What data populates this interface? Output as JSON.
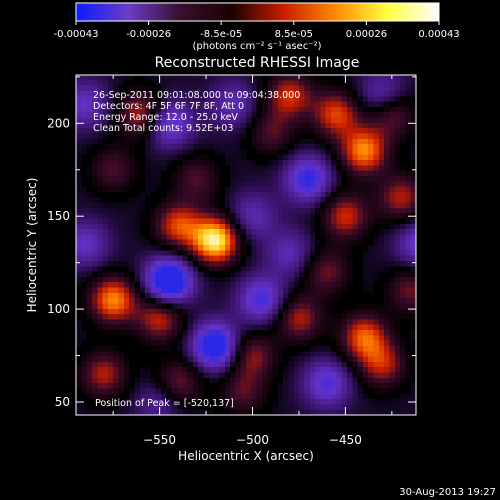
{
  "colorbar": {
    "ticks": [
      "-0.00043",
      "-0.00026",
      "-8.5e-05",
      "8.5e-05",
      "0.00026",
      "0.00043"
    ],
    "units": "(photons cm⁻² s⁻¹ asec⁻²)",
    "colors": [
      "#0a1cff",
      "#6a3cc8",
      "#3a1030",
      "#1a0000",
      "#c81e00",
      "#ff8a00",
      "#ffff40",
      "#ffffff"
    ]
  },
  "chart_data": {
    "type": "heatmap",
    "title": "Reconstructed RHESSI Image",
    "xlabel": "Heliocentric X (arcsec)",
    "ylabel": "Heliocentric Y (arcsec)",
    "xlim": [
      -595,
      -412
    ],
    "ylim": [
      43,
      226
    ],
    "x_ticks": [
      -550,
      -500,
      -450
    ],
    "y_ticks": [
      50,
      100,
      150,
      200
    ],
    "zlim": [
      -0.00043,
      0.00043
    ],
    "annotations": [
      "26-Sep-2011 09:01:08.000 to 09:04:38.000",
      "Detectors: 4F 5F 6F 7F 8F, Att 0",
      "Energy Range: 12.0 - 25.0 keV",
      "Clean    Total counts: 9.52E+03"
    ],
    "peak_label": "Position of Peak = [-520,137]",
    "peak": {
      "x": -520,
      "y": 137
    },
    "sources": [
      {
        "x": -520,
        "y": 137,
        "amp": 1.0
      },
      {
        "x": -540,
        "y": 145,
        "amp": 0.6
      },
      {
        "x": -560,
        "y": 205,
        "amp": 0.55
      },
      {
        "x": -575,
        "y": 175,
        "amp": 0.35
      },
      {
        "x": -480,
        "y": 215,
        "amp": 0.55
      },
      {
        "x": -490,
        "y": 195,
        "amp": 0.35
      },
      {
        "x": -440,
        "y": 185,
        "amp": 0.75
      },
      {
        "x": -455,
        "y": 205,
        "amp": 0.6
      },
      {
        "x": -425,
        "y": 205,
        "amp": 0.45
      },
      {
        "x": -450,
        "y": 150,
        "amp": 0.55
      },
      {
        "x": -420,
        "y": 160,
        "amp": 0.5
      },
      {
        "x": -460,
        "y": 120,
        "amp": 0.4
      },
      {
        "x": -575,
        "y": 105,
        "amp": 0.75
      },
      {
        "x": -550,
        "y": 95,
        "amp": 0.55
      },
      {
        "x": -580,
        "y": 65,
        "amp": 0.5
      },
      {
        "x": -540,
        "y": 60,
        "amp": 0.45
      },
      {
        "x": -500,
        "y": 75,
        "amp": 0.45
      },
      {
        "x": -475,
        "y": 95,
        "amp": 0.5
      },
      {
        "x": -440,
        "y": 85,
        "amp": 0.65
      },
      {
        "x": -430,
        "y": 70,
        "amp": 0.5
      },
      {
        "x": -415,
        "y": 110,
        "amp": 0.4
      },
      {
        "x": -530,
        "y": 170,
        "amp": 0.35
      },
      {
        "x": -505,
        "y": 55,
        "amp": 0.35
      },
      {
        "x": -545,
        "y": 200,
        "amp": -0.55
      },
      {
        "x": -510,
        "y": 210,
        "amp": -0.35
      },
      {
        "x": -470,
        "y": 170,
        "amp": -0.6
      },
      {
        "x": -430,
        "y": 215,
        "amp": -0.4
      },
      {
        "x": -545,
        "y": 115,
        "amp": -0.9
      },
      {
        "x": -500,
        "y": 150,
        "amp": -0.35
      },
      {
        "x": -520,
        "y": 80,
        "amp": -0.8
      },
      {
        "x": -495,
        "y": 105,
        "amp": -0.55
      },
      {
        "x": -460,
        "y": 60,
        "amp": -0.5
      },
      {
        "x": -410,
        "y": 135,
        "amp": -0.45
      },
      {
        "x": -590,
        "y": 135,
        "amp": -0.4
      },
      {
        "x": -590,
        "y": 210,
        "amp": -0.4
      },
      {
        "x": -480,
        "y": 130,
        "amp": -0.35
      },
      {
        "x": -550,
        "y": 50,
        "amp": -0.3
      }
    ]
  },
  "footer": {
    "timestamp": "30-Aug-2013 19:27"
  }
}
